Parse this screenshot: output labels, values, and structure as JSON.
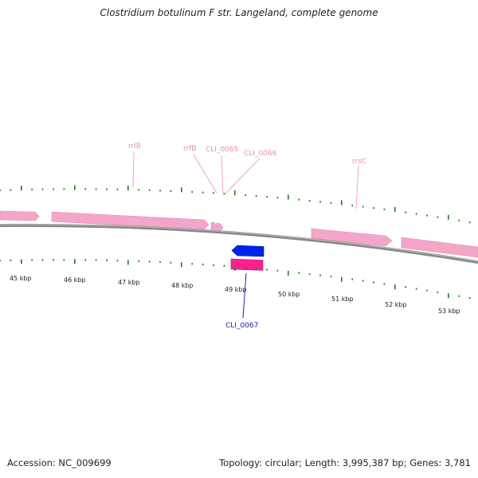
{
  "title": "Clostridium botulinum F str. Langeland, complete genome",
  "footer": {
    "accession": "Accession: NC_009699",
    "summary": "Topology: circular; Length: 3,995,387 bp; Genes: 3,781"
  },
  "colors": {
    "rrna": "#f4a6c9",
    "rrna_label": "#e98ab8",
    "cds_forward": "#0022ee",
    "cds_reverse": "#ff1f8e",
    "cds_label": "#1a1aaa",
    "ticks": "#1f7a1f",
    "backbone": "#777777"
  },
  "axis_labels": [
    "45 kbp",
    "46 kbp",
    "47 kbp",
    "48 kbp",
    "49 kbp",
    "50 kbp",
    "51 kbp",
    "52 kbp",
    "53 kbp"
  ],
  "feature_labels": {
    "rrlB": "rrlB",
    "rrfB": "rrfB",
    "cli0065": "CLI_0065",
    "cli0066": "CLI_0066",
    "rrsC": "rrsC",
    "cli0067": "CLI_0067"
  }
}
